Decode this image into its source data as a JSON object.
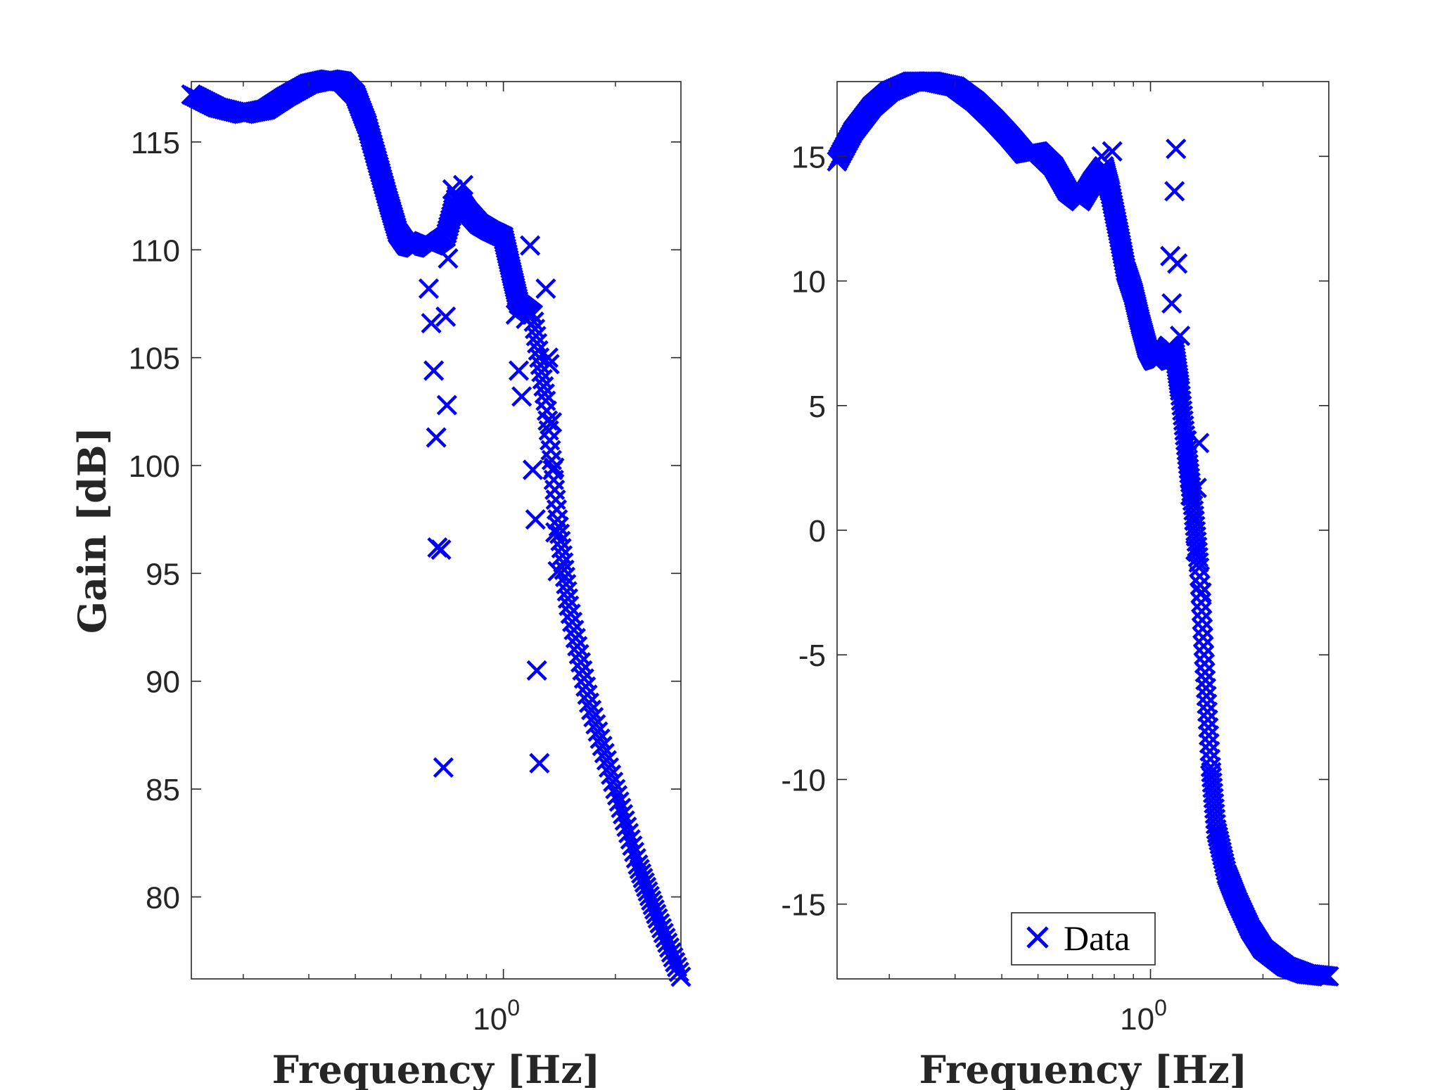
{
  "colors": {
    "marker": "#0000ff",
    "axis": "#262626",
    "background": "#ffffff"
  },
  "chart_data": [
    {
      "type": "scatter",
      "marker": "x",
      "xscale": "log",
      "xlim": [
        0.145,
        3.0
      ],
      "ylim": [
        76.2,
        117.8
      ],
      "xticks": [
        1
      ],
      "xtick_labels": [
        {
          "base": "10",
          "exp": "0"
        }
      ],
      "yticks": [
        80,
        85,
        90,
        95,
        100,
        105,
        110,
        115
      ],
      "ytick_labels": [
        "80",
        "85",
        "90",
        "95",
        "100",
        "105",
        "110",
        "115"
      ],
      "xlabel": "Frequency [Hz]",
      "ylabel": "Gain [dB]",
      "curve": [
        [
          0.145,
          117.2
        ],
        [
          0.17,
          116.6
        ],
        [
          0.2,
          116.3
        ],
        [
          0.23,
          116.5
        ],
        [
          0.26,
          117.1
        ],
        [
          0.3,
          117.7
        ],
        [
          0.34,
          117.9
        ],
        [
          0.37,
          117.8
        ],
        [
          0.4,
          117.2
        ],
        [
          0.43,
          115.8
        ],
        [
          0.46,
          114.0
        ],
        [
          0.49,
          112.3
        ],
        [
          0.52,
          110.8
        ],
        [
          0.55,
          110.2
        ],
        [
          0.58,
          110.1
        ],
        [
          0.61,
          110.4
        ],
        [
          0.65,
          110.2
        ],
        [
          0.7,
          110.6
        ],
        [
          0.75,
          112.5
        ],
        [
          0.8,
          111.8
        ],
        [
          0.86,
          111.2
        ],
        [
          0.92,
          110.9
        ],
        [
          1.0,
          110.6
        ],
        [
          1.05,
          109.0
        ],
        [
          1.1,
          107.5
        ],
        [
          1.2,
          107.0
        ],
        [
          1.3,
          103.0
        ],
        [
          1.4,
          97.5
        ],
        [
          1.5,
          93.5
        ],
        [
          1.7,
          89.0
        ],
        [
          2.0,
          85.0
        ],
        [
          2.3,
          81.5
        ],
        [
          2.6,
          79.0
        ],
        [
          3.0,
          76.3
        ]
      ],
      "outliers": [
        [
          0.63,
          108.2
        ],
        [
          0.64,
          106.6
        ],
        [
          0.65,
          104.4
        ],
        [
          0.66,
          101.3
        ],
        [
          0.665,
          96.2
        ],
        [
          0.68,
          96.1
        ],
        [
          0.69,
          86.0
        ],
        [
          0.7,
          106.9
        ],
        [
          0.705,
          102.8
        ],
        [
          0.71,
          109.6
        ],
        [
          0.73,
          112.8
        ],
        [
          0.78,
          113.0
        ],
        [
          1.08,
          107.0
        ],
        [
          1.1,
          104.4
        ],
        [
          1.12,
          103.2
        ],
        [
          1.15,
          106.8
        ],
        [
          1.18,
          110.2
        ],
        [
          1.2,
          99.8
        ],
        [
          1.22,
          97.5
        ],
        [
          1.23,
          90.5
        ],
        [
          1.25,
          86.2
        ],
        [
          1.3,
          108.2
        ],
        [
          1.32,
          105.0
        ],
        [
          1.33,
          104.7
        ],
        [
          1.35,
          102.0
        ],
        [
          1.37,
          99.9
        ],
        [
          1.38,
          96.9
        ],
        [
          1.4,
          95.1
        ]
      ]
    },
    {
      "type": "scatter",
      "marker": "x",
      "xscale": "log",
      "xlim": [
        0.145,
        3.0
      ],
      "ylim": [
        -18,
        18
      ],
      "xticks": [
        1
      ],
      "xtick_labels": [
        {
          "base": "10",
          "exp": "0"
        }
      ],
      "yticks": [
        -15,
        -10,
        -5,
        0,
        5,
        10,
        15
      ],
      "ytick_labels": [
        "-15",
        "-10",
        "-5",
        "0",
        "5",
        "10",
        "15"
      ],
      "xlabel": "Frequency [Hz]",
      "ylabel": "",
      "legend": {
        "entries": [
          "Data"
        ],
        "position": "bottom-center"
      },
      "curve": [
        [
          0.145,
          14.8
        ],
        [
          0.16,
          16.0
        ],
        [
          0.18,
          17.0
        ],
        [
          0.2,
          17.6
        ],
        [
          0.23,
          18.0
        ],
        [
          0.26,
          18.0
        ],
        [
          0.3,
          17.8
        ],
        [
          0.34,
          17.2
        ],
        [
          0.38,
          16.5
        ],
        [
          0.42,
          15.8
        ],
        [
          0.46,
          15.1
        ],
        [
          0.5,
          15.2
        ],
        [
          0.55,
          14.6
        ],
        [
          0.6,
          13.6
        ],
        [
          0.65,
          13.2
        ],
        [
          0.7,
          14.0
        ],
        [
          0.75,
          14.6
        ],
        [
          0.78,
          13.6
        ],
        [
          0.82,
          12.0
        ],
        [
          0.86,
          10.4
        ],
        [
          0.9,
          9.5
        ],
        [
          0.94,
          8.3
        ],
        [
          0.98,
          7.3
        ],
        [
          1.02,
          6.8
        ],
        [
          1.07,
          6.9
        ],
        [
          1.12,
          7.4
        ],
        [
          1.16,
          7.2
        ],
        [
          1.2,
          5.6
        ],
        [
          1.25,
          3.2
        ],
        [
          1.3,
          1.0
        ],
        [
          1.35,
          -1.5
        ],
        [
          1.4,
          -5.7
        ],
        [
          1.45,
          -9.5
        ],
        [
          1.5,
          -12.0
        ],
        [
          1.6,
          -13.8
        ],
        [
          1.7,
          -14.8
        ],
        [
          1.85,
          -16.0
        ],
        [
          2.0,
          -16.8
        ],
        [
          2.3,
          -17.5
        ],
        [
          2.6,
          -17.8
        ],
        [
          3.0,
          -17.9
        ]
      ],
      "outliers": [
        [
          0.74,
          15.0
        ],
        [
          0.79,
          15.2
        ],
        [
          1.13,
          11.0
        ],
        [
          1.14,
          9.1
        ],
        [
          1.16,
          13.6
        ],
        [
          1.17,
          15.3
        ],
        [
          1.18,
          10.7
        ],
        [
          1.2,
          7.8
        ],
        [
          1.25,
          3.6
        ],
        [
          1.28,
          1.4
        ],
        [
          1.31,
          0.4
        ],
        [
          1.32,
          -0.8
        ],
        [
          1.33,
          1.7
        ],
        [
          1.35,
          3.5
        ],
        [
          1.37,
          -2.5
        ]
      ]
    }
  ]
}
